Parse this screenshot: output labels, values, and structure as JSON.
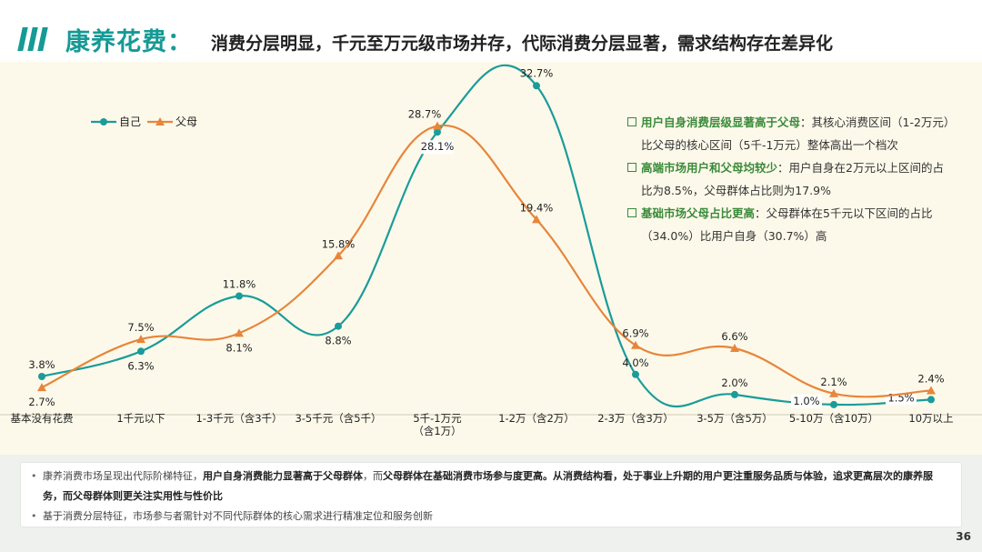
{
  "header": {
    "title_main": "康养花费：",
    "title_sub": "消费分层明显，千元至万元级市场并存，代际消费分层显著，需求结构存在差异化"
  },
  "chart_data": {
    "type": "line",
    "categories": [
      "基本没有花费",
      "1千元以下",
      "1-3千元（含3千）",
      "3-5千元（含5千）",
      "5千-1万元（含1万）",
      "1-2万（含2万）",
      "2-3万（含3万）",
      "3-5万（含5万）",
      "5-10万（含10万）",
      "10万以上"
    ],
    "category_lines": [
      [
        "基本没有花费"
      ],
      [
        "1千元以下"
      ],
      [
        "1-3千元（含3千）"
      ],
      [
        "3-5千元（含5千）"
      ],
      [
        "5千-1万元",
        "（含1万）"
      ],
      [
        "1-2万（含2万）"
      ],
      [
        "2-3万（含3万）"
      ],
      [
        "3-5万（含5万）"
      ],
      [
        "5-10万（含10万）"
      ],
      [
        "10万以上"
      ]
    ],
    "series": [
      {
        "name": "自己",
        "color": "#1a9c9a",
        "values": [
          3.8,
          6.3,
          11.8,
          8.8,
          28.1,
          32.7,
          4.0,
          2.0,
          1.0,
          1.5
        ],
        "labels": [
          "3.8%",
          "6.3%",
          "11.8%",
          "8.8%",
          "28.1%",
          "32.7%",
          "4.0%",
          "2.0%",
          "1.0%",
          "1.5%"
        ]
      },
      {
        "name": "父母",
        "color": "#e8853a",
        "values": [
          2.7,
          7.5,
          8.1,
          15.8,
          28.7,
          19.4,
          6.9,
          6.6,
          2.1,
          2.4
        ],
        "labels": [
          "2.7%",
          "7.5%",
          "8.1%",
          "15.8%",
          "28.7%",
          "19.4%",
          "6.9%",
          "6.6%",
          "2.1%",
          "2.4%"
        ]
      }
    ],
    "ylim": [
      0,
      35
    ],
    "legend_position": "top-left",
    "unit": "%"
  },
  "notes": [
    {
      "highlight": "用户自身消费层级显著高于父母",
      "text_line1": "：其核心消费区间（1-2万元）",
      "text_line2": "比父母的核心区间（5千-1万元）整体高出一个档次"
    },
    {
      "highlight": "高端市场用户和父母均较少",
      "text_line1": "：用户自身在2万元以上区间的占",
      "text_line2": "比为8.5%，父母群体占比则为17.9%"
    },
    {
      "highlight": "基础市场父母占比更高",
      "text_line1": "：父母群体在5千元以下区间的占比",
      "text_line2": "（34.0%）比用户自身（30.7%）高"
    }
  ],
  "summary": {
    "b1_p1": "康养消费市场呈现出代际阶梯特征，",
    "b1_s1": "用户自身消费能力显著高于父母群体",
    "b1_p2": "，而",
    "b1_s2": "父母群体在基础消费市场参与度更高。从消费结构看，处于事业上升期的用户更注重服务品质与体验，追求更高层次的康养服务，而父母群体则更关注实用性与性价比",
    "b2": "基于消费分层特征，市场参与者需针对不同代际群体的核心需求进行精准定位和服务创新"
  },
  "page_number": "36"
}
